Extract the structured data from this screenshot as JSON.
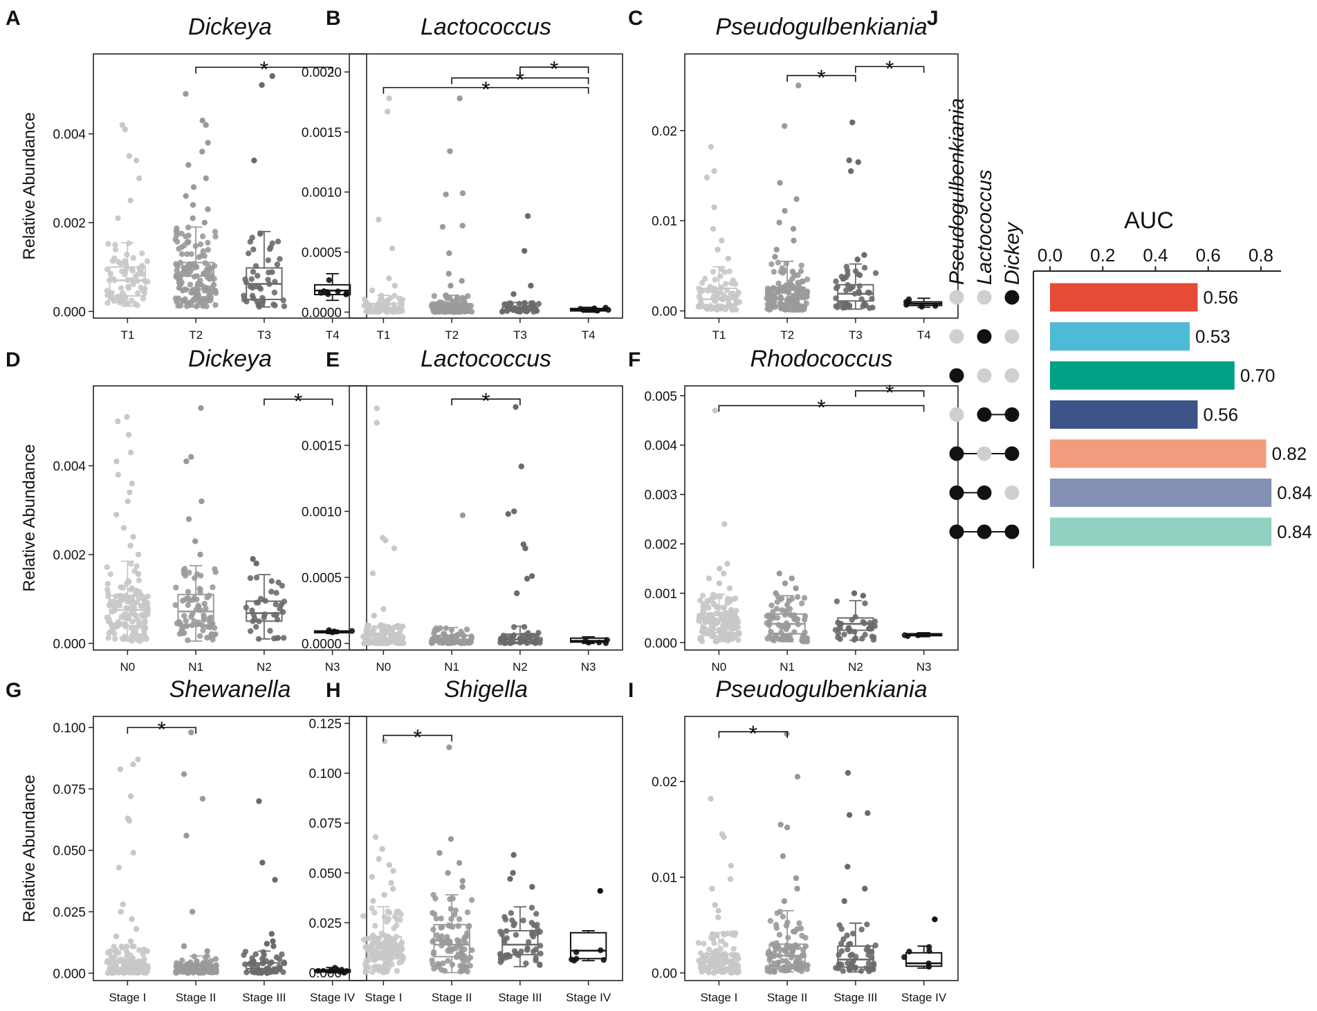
{
  "chart_data": [
    {
      "id": "A",
      "type": "box",
      "title": "Dickeya",
      "ylabel": "Relative Abundance",
      "categories": [
        "T1",
        "T2",
        "T3",
        "T4"
      ],
      "ylim": [
        -0.00015,
        0.0058
      ],
      "yticks": [
        0.0,
        0.002,
        0.004
      ],
      "ytick_labels": [
        "0.000",
        "0.002",
        "0.004"
      ],
      "box": [
        {
          "q1": 0.00035,
          "median": 0.0007,
          "q3": 0.001,
          "lo": 0.00012,
          "hi": 0.00155
        },
        {
          "q1": 0.0005,
          "median": 0.0008,
          "q3": 0.0011,
          "lo": 0.0001,
          "hi": 0.0019
        },
        {
          "q1": 0.00027,
          "median": 0.00062,
          "q3": 0.00098,
          "lo": 0.0001,
          "hi": 0.0018
        },
        {
          "q1": 0.00038,
          "median": 0.00047,
          "q3": 0.0006,
          "lo": 0.00025,
          "hi": 0.00085
        }
      ],
      "outliers": [
        [
          0.0042,
          0.0041,
          0.0035,
          0.0034,
          0.003,
          0.0025,
          0.0021
        ],
        [
          0.0049,
          0.0043,
          0.0042,
          0.0038,
          0.0036,
          0.0033,
          0.003,
          0.0028,
          0.0026,
          0.0024,
          0.0023,
          0.0021,
          0.002
        ],
        [
          0.0053,
          0.0051,
          0.0034
        ],
        []
      ],
      "counts": [
        70,
        140,
        45,
        8
      ],
      "sig": [
        {
          "from": 1,
          "to": 3,
          "y": 0.0055
        }
      ],
      "sig_label": "*"
    },
    {
      "id": "B",
      "type": "box",
      "title": "Lactococcus",
      "ylabel": "",
      "categories": [
        "T1",
        "T2",
        "T3",
        "T4"
      ],
      "ylim": [
        -5e-05,
        0.00215
      ],
      "yticks": [
        0.0,
        0.0005,
        0.001,
        0.0015,
        0.002
      ],
      "ytick_labels": [
        "0.0000",
        "0.0005",
        "0.0010",
        "0.0015",
        "0.0020"
      ],
      "box": [
        {
          "q1": 1e-05,
          "median": 3e-05,
          "q3": 7e-05,
          "lo": 0.0,
          "hi": 0.00014
        },
        {
          "q1": 1e-05,
          "median": 3e-05,
          "q3": 7e-05,
          "lo": 0.0,
          "hi": 0.00014
        },
        {
          "q1": 1e-05,
          "median": 2e-05,
          "q3": 4e-05,
          "lo": 0.0,
          "hi": 8e-05
        },
        {
          "q1": 1e-05,
          "median": 2e-05,
          "q3": 3e-05,
          "lo": 0.0,
          "hi": 4e-05
        }
      ],
      "outliers": [
        [
          0.00178,
          0.00167,
          0.00077,
          0.00053,
          0.00028,
          0.00022,
          0.00018
        ],
        [
          0.00178,
          0.00134,
          0.00099,
          0.00098,
          0.00072,
          0.00071,
          0.00049,
          0.00032,
          0.00026,
          0.00022
        ],
        [
          0.0008,
          0.00051,
          0.00022,
          0.00015
        ],
        []
      ],
      "counts": [
        60,
        120,
        40,
        8
      ],
      "sig": [
        {
          "from": 2,
          "to": 3,
          "y": 0.00204
        },
        {
          "from": 1,
          "to": 3,
          "y": 0.00195
        },
        {
          "from": 0,
          "to": 3,
          "y": 0.00187
        }
      ],
      "sig_label": "*"
    },
    {
      "id": "C",
      "type": "box",
      "title": "Pseudogulbenkiania",
      "ylabel": "",
      "categories": [
        "T1",
        "T2",
        "T3",
        "T4"
      ],
      "ylim": [
        -0.0008,
        0.0285
      ],
      "yticks": [
        0.0,
        0.01,
        0.02
      ],
      "ytick_labels": [
        "0.00",
        "0.01",
        "0.02"
      ],
      "box": [
        {
          "q1": 0.0006,
          "median": 0.0013,
          "q3": 0.0025,
          "lo": 0.0001,
          "hi": 0.0049
        },
        {
          "q1": 0.0006,
          "median": 0.0013,
          "q3": 0.0026,
          "lo": 0.0001,
          "hi": 0.0055
        },
        {
          "q1": 0.0011,
          "median": 0.0019,
          "q3": 0.0029,
          "lo": 0.0002,
          "hi": 0.0052
        },
        {
          "q1": 0.0006,
          "median": 0.0008,
          "q3": 0.001,
          "lo": 0.0004,
          "hi": 0.0014
        }
      ],
      "outliers": [
        [
          0.0182,
          0.0155,
          0.0148,
          0.0115,
          0.0091,
          0.0078,
          0.0068,
          0.0058
        ],
        [
          0.025,
          0.0205,
          0.0142,
          0.0124,
          0.0111,
          0.0098,
          0.0091,
          0.0078,
          0.0068,
          0.006
        ],
        [
          0.0209,
          0.0167,
          0.0165,
          0.0155,
          0.0062,
          0.0057
        ],
        []
      ],
      "counts": [
        70,
        140,
        45,
        6
      ],
      "sig": [
        {
          "from": 1,
          "to": 2,
          "y": 0.0261
        },
        {
          "from": 2,
          "to": 3,
          "y": 0.0271
        }
      ],
      "sig_label": "*"
    },
    {
      "id": "D",
      "type": "box",
      "title": "Dickeya",
      "ylabel": "Relative Abundance",
      "categories": [
        "N0",
        "N1",
        "N2",
        "N3"
      ],
      "ylim": [
        -0.00015,
        0.0058
      ],
      "yticks": [
        0.0,
        0.002,
        0.004
      ],
      "ytick_labels": [
        "0.000",
        "0.002",
        "0.004"
      ],
      "box": [
        {
          "q1": 0.0004,
          "median": 0.00075,
          "q3": 0.00108,
          "lo": 5e-05,
          "hi": 0.00185
        },
        {
          "q1": 0.0004,
          "median": 0.00072,
          "q3": 0.0011,
          "lo": 5e-05,
          "hi": 0.00175
        },
        {
          "q1": 0.0005,
          "median": 0.00068,
          "q3": 0.00095,
          "lo": 0.0001,
          "hi": 0.00155
        },
        {
          "q1": 0.00024,
          "median": 0.00026,
          "q3": 0.00028,
          "lo": 0.00022,
          "hi": 0.0003
        }
      ],
      "outliers": [
        [
          0.0051,
          0.005,
          0.0047,
          0.0043,
          0.0041,
          0.0038,
          0.0036,
          0.0034,
          0.0032,
          0.0029,
          0.0026,
          0.0024,
          0.0022,
          0.002
        ],
        [
          0.0053,
          0.0042,
          0.0041,
          0.0032,
          0.0028,
          0.0023,
          0.002
        ],
        [
          0.0019,
          0.0018
        ],
        []
      ],
      "counts": [
        140,
        75,
        35,
        4
      ],
      "sig": [
        {
          "from": 2,
          "to": 3,
          "y": 0.0055
        }
      ],
      "sig_label": "*"
    },
    {
      "id": "E",
      "type": "box",
      "title": "Lactococcus",
      "ylabel": "",
      "categories": [
        "N0",
        "N1",
        "N2",
        "N3"
      ],
      "ylim": [
        -5e-05,
        0.00195
      ],
      "yticks": [
        0.0,
        0.0005,
        0.001,
        0.0015
      ],
      "ytick_labels": [
        "0.0000",
        "0.0005",
        "0.0010",
        "0.0015"
      ],
      "box": [
        {
          "q1": 1e-05,
          "median": 3e-05,
          "q3": 7e-05,
          "lo": 0.0,
          "hi": 0.00014
        },
        {
          "q1": 1e-05,
          "median": 3e-05,
          "q3": 6e-05,
          "lo": 0.0,
          "hi": 0.00012
        },
        {
          "q1": 1e-05,
          "median": 3e-05,
          "q3": 7e-05,
          "lo": 0.0,
          "hi": 0.00013
        },
        {
          "q1": 1e-05,
          "median": 2e-05,
          "q3": 4e-05,
          "lo": 0.0,
          "hi": 5e-05
        }
      ],
      "outliers": [
        [
          0.00178,
          0.00167,
          0.0008,
          0.00078,
          0.00072,
          0.00053,
          0.00026,
          0.00021
        ],
        [
          0.00097
        ],
        [
          0.00179,
          0.00134,
          0.001,
          0.00098,
          0.00075,
          0.00072,
          0.00051,
          0.00049,
          0.00038
        ],
        []
      ],
      "counts": [
        120,
        75,
        40,
        5
      ],
      "sig": [
        {
          "from": 1,
          "to": 2,
          "y": 0.00185
        }
      ],
      "sig_label": "*"
    },
    {
      "id": "F",
      "type": "box",
      "title": "Rhodococcus",
      "ylabel": "",
      "categories": [
        "N0",
        "N1",
        "N2",
        "N3"
      ],
      "ylim": [
        -0.00015,
        0.0052
      ],
      "yticks": [
        0.0,
        0.001,
        0.002,
        0.003,
        0.004,
        0.005
      ],
      "ytick_labels": [
        "0.000",
        "0.001",
        "0.002",
        "0.003",
        "0.004",
        "0.005"
      ],
      "box": [
        {
          "q1": 0.0002,
          "median": 0.00045,
          "q3": 0.0006,
          "lo": 2e-05,
          "hi": 0.00098
        },
        {
          "q1": 0.00018,
          "median": 0.00038,
          "q3": 0.00058,
          "lo": 2e-05,
          "hi": 0.00095
        },
        {
          "q1": 0.00025,
          "median": 0.00038,
          "q3": 0.0005,
          "lo": 5e-05,
          "hi": 0.00085
        },
        {
          "q1": 0.00014,
          "median": 0.00016,
          "q3": 0.00018,
          "lo": 0.00012,
          "hi": 0.0002
        }
      ],
      "outliers": [
        [
          0.0047,
          0.0024,
          0.0016,
          0.0015,
          0.0014,
          0.0013,
          0.0012,
          0.0011
        ],
        [
          0.0014,
          0.0013,
          0.0012,
          0.0011,
          0.001
        ],
        [
          0.001,
          0.00095
        ],
        []
      ],
      "counts": [
        140,
        75,
        35,
        4
      ],
      "sig": [
        {
          "from": 2,
          "to": 3,
          "y": 0.0051
        },
        {
          "from": 0,
          "to": 3,
          "y": 0.0048
        }
      ],
      "sig_label": "*"
    },
    {
      "id": "G",
      "type": "box",
      "title": "Shewanella",
      "ylabel": "Relative Abundance",
      "categories": [
        "Stage I",
        "Stage II",
        "Stage III",
        "Stage IV"
      ],
      "ylim": [
        -0.003,
        0.1045
      ],
      "yticks": [
        0.0,
        0.025,
        0.05,
        0.075,
        0.1
      ],
      "ytick_labels": [
        "0.000",
        "0.025",
        "0.050",
        "0.075",
        "0.100"
      ],
      "box": [
        {
          "q1": 0.001,
          "median": 0.002,
          "q3": 0.005,
          "lo": 0.0,
          "hi": 0.011
        },
        {
          "q1": 0.0008,
          "median": 0.0016,
          "q3": 0.0035,
          "lo": 0.0,
          "hi": 0.007
        },
        {
          "q1": 0.0008,
          "median": 0.0018,
          "q3": 0.0042,
          "lo": 0.0,
          "hi": 0.009
        },
        {
          "q1": 0.0005,
          "median": 0.0009,
          "q3": 0.0014,
          "lo": 0.0002,
          "hi": 0.0023
        }
      ],
      "outliers": [
        [
          0.087,
          0.085,
          0.083,
          0.072,
          0.063,
          0.062,
          0.049,
          0.043,
          0.028,
          0.025,
          0.022,
          0.018,
          0.015,
          0.013
        ],
        [
          0.098,
          0.081,
          0.071,
          0.056,
          0.025,
          0.011,
          0.009
        ],
        [
          0.07,
          0.045,
          0.038,
          0.016,
          0.013,
          0.012,
          0.011
        ],
        []
      ],
      "counts": [
        130,
        90,
        50,
        8
      ],
      "sig": [
        {
          "from": 0,
          "to": 1,
          "y": 0.1
        }
      ],
      "sig_label": "*"
    },
    {
      "id": "H",
      "type": "box",
      "title": "Shigella",
      "ylabel": "",
      "categories": [
        "Stage I",
        "Stage II",
        "Stage III",
        "Stage IV"
      ],
      "ylim": [
        -0.004,
        0.1285
      ],
      "yticks": [
        0.0,
        0.025,
        0.05,
        0.075,
        0.1,
        0.125
      ],
      "ytick_labels": [
        "0.000",
        "0.025",
        "0.050",
        "0.075",
        "0.100",
        "0.125"
      ],
      "box": [
        {
          "q1": 0.007,
          "median": 0.012,
          "q3": 0.018,
          "lo": 0.0,
          "hi": 0.033
        },
        {
          "q1": 0.008,
          "median": 0.014,
          "q3": 0.024,
          "lo": 0.0,
          "hi": 0.039
        },
        {
          "q1": 0.009,
          "median": 0.014,
          "q3": 0.021,
          "lo": 0.003,
          "hi": 0.033
        },
        {
          "q1": 0.007,
          "median": 0.011,
          "q3": 0.02,
          "lo": 0.006,
          "hi": 0.021
        }
      ],
      "outliers": [
        [
          0.116,
          0.068,
          0.062,
          0.057,
          0.054,
          0.051,
          0.048,
          0.045,
          0.042,
          0.039,
          0.036
        ],
        [
          0.113,
          0.067,
          0.06,
          0.055,
          0.05,
          0.046,
          0.043
        ],
        [
          0.059,
          0.05,
          0.047,
          0.043
        ],
        [
          0.041
        ]
      ],
      "counts": [
        130,
        90,
        50,
        6
      ],
      "sig": [
        {
          "from": 0,
          "to": 1,
          "y": 0.119
        }
      ],
      "sig_label": "*"
    },
    {
      "id": "I",
      "type": "box",
      "title": "Pseudogulbenkiania",
      "ylabel": "",
      "categories": [
        "Stage I",
        "Stage II",
        "Stage III",
        "Stage IV"
      ],
      "ylim": [
        -0.0008,
        0.0268
      ],
      "yticks": [
        0.0,
        0.01,
        0.02
      ],
      "ytick_labels": [
        "0.00",
        "0.01",
        "0.02"
      ],
      "box": [
        {
          "q1": 0.0005,
          "median": 0.0011,
          "q3": 0.002,
          "lo": 0.0,
          "hi": 0.0042
        },
        {
          "q1": 0.0007,
          "median": 0.0018,
          "q3": 0.003,
          "lo": 0.0001,
          "hi": 0.0065
        },
        {
          "q1": 0.0006,
          "median": 0.0014,
          "q3": 0.0028,
          "lo": 0.0001,
          "hi": 0.0052
        },
        {
          "q1": 0.0007,
          "median": 0.001,
          "q3": 0.0021,
          "lo": 0.0005,
          "hi": 0.0028
        }
      ],
      "outliers": [
        [
          0.0182,
          0.0145,
          0.0142,
          0.0112,
          0.0098,
          0.0088,
          0.0071,
          0.0065,
          0.0058
        ],
        [
          0.025,
          0.0205,
          0.0155,
          0.0152,
          0.0122,
          0.0099,
          0.0088,
          0.0075
        ],
        [
          0.0209,
          0.0167,
          0.0165,
          0.0111,
          0.0088,
          0.0075
        ],
        [
          0.0056
        ]
      ],
      "counts": [
        130,
        90,
        50,
        6
      ],
      "sig": [
        {
          "from": 0,
          "to": 1,
          "y": 0.0252
        }
      ],
      "sig_label": "*"
    },
    {
      "id": "J",
      "type": "bar",
      "title": "AUC",
      "orientation": "horizontal",
      "xlim": [
        0,
        0.85
      ],
      "xticks": [
        0.0,
        0.2,
        0.4,
        0.6,
        0.8
      ],
      "xtick_labels": [
        "0.0",
        "0.2",
        "0.4",
        "0.6",
        "0.8"
      ],
      "genera": [
        "Pseudogulbenkiania",
        "Lactococcus",
        "Dickey"
      ],
      "rows": [
        {
          "combo": [
            0,
            0,
            1
          ],
          "value": 0.56,
          "label": "0.56",
          "color": "#E64B35"
        },
        {
          "combo": [
            0,
            1,
            0
          ],
          "value": 0.53,
          "label": "0.53",
          "color": "#4DBBD5"
        },
        {
          "combo": [
            1,
            0,
            0
          ],
          "value": 0.7,
          "label": "0.70",
          "color": "#00A087"
        },
        {
          "combo": [
            0,
            1,
            1
          ],
          "value": 0.56,
          "label": "0.56",
          "color": "#3C5488"
        },
        {
          "combo": [
            1,
            0,
            1
          ],
          "value": 0.82,
          "label": "0.82",
          "color": "#F39B7F"
        },
        {
          "combo": [
            1,
            1,
            0
          ],
          "value": 0.84,
          "label": "0.84",
          "color": "#8491B4"
        },
        {
          "combo": [
            1,
            1,
            1
          ],
          "value": 0.84,
          "label": "0.84",
          "color": "#91D1C2"
        }
      ]
    }
  ],
  "group_colors": [
    "#c8c8c8",
    "#9a9a9a",
    "#6a6a6a",
    "#111111"
  ]
}
